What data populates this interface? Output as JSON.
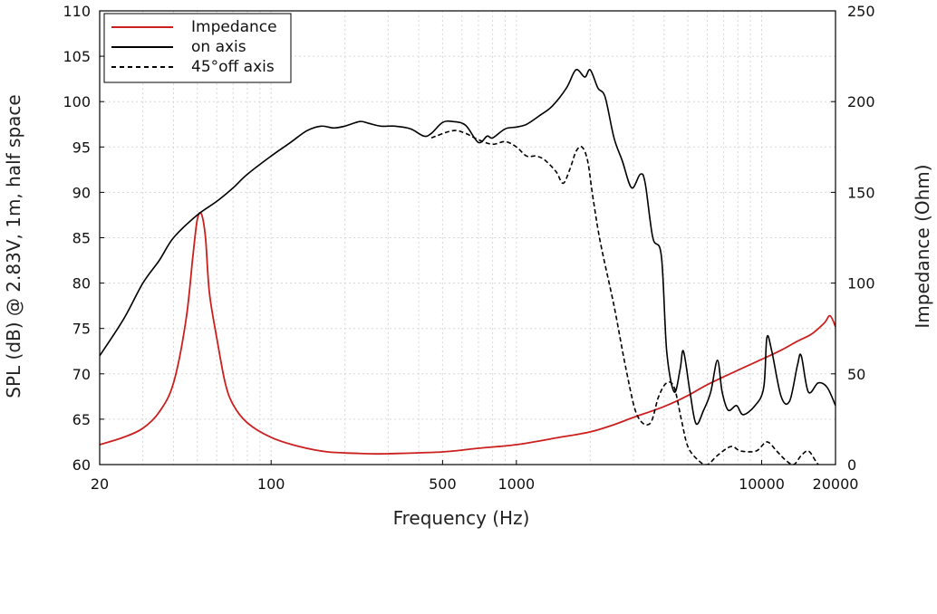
{
  "chart_data": {
    "type": "line",
    "x_scale": "log",
    "xlabel": "Frequency (Hz)",
    "ylabel": "SPL (dB) @ 2.83V, 1m, half space",
    "y2label": "Impedance (Ohm)",
    "xlim": [
      20,
      20000
    ],
    "ylim": [
      60,
      110
    ],
    "y2lim": [
      0,
      250
    ],
    "grid": true,
    "legend_position": "top-left",
    "x_ticks": [
      20,
      100,
      500,
      1000,
      10000,
      20000
    ],
    "x_tick_labels": [
      "20",
      "100",
      "500",
      "1000",
      "10000",
      "20000"
    ],
    "y_ticks": [
      60,
      65,
      70,
      75,
      80,
      85,
      90,
      95,
      100,
      105,
      110
    ],
    "y_tick_labels": [
      "60",
      "65",
      "70",
      "75",
      "80",
      "85",
      "90",
      "95",
      "100",
      "105",
      "110"
    ],
    "y2_ticks": [
      0,
      50,
      100,
      150,
      200,
      250
    ],
    "y2_tick_labels": [
      "0",
      "50",
      "100",
      "150",
      "200",
      "250"
    ],
    "series": [
      {
        "name": "Impedance",
        "axis": "right",
        "color": "#cc1f1f",
        "style": "solid",
        "points": [
          [
            20,
            11
          ],
          [
            25,
            15
          ],
          [
            30,
            20
          ],
          [
            35,
            29
          ],
          [
            40,
            45
          ],
          [
            45,
            80
          ],
          [
            48,
            115
          ],
          [
            50,
            135
          ],
          [
            52,
            138
          ],
          [
            54,
            125
          ],
          [
            56,
            95
          ],
          [
            60,
            70
          ],
          [
            65,
            45
          ],
          [
            70,
            33
          ],
          [
            80,
            23
          ],
          [
            100,
            15
          ],
          [
            130,
            10
          ],
          [
            170,
            7
          ],
          [
            250,
            6
          ],
          [
            300,
            6
          ],
          [
            500,
            7
          ],
          [
            700,
            9
          ],
          [
            1000,
            11
          ],
          [
            1500,
            15
          ],
          [
            2000,
            18
          ],
          [
            2500,
            22
          ],
          [
            3000,
            26
          ],
          [
            4000,
            32
          ],
          [
            5000,
            38
          ],
          [
            6000,
            44
          ],
          [
            8000,
            52
          ],
          [
            10000,
            58
          ],
          [
            12000,
            63
          ],
          [
            14000,
            68
          ],
          [
            16000,
            72
          ],
          [
            18000,
            78
          ],
          [
            19000,
            82
          ],
          [
            20000,
            76
          ]
        ]
      },
      {
        "name": "on axis",
        "axis": "left",
        "color": "#000000",
        "style": "solid",
        "points": [
          [
            20,
            72
          ],
          [
            25,
            76
          ],
          [
            30,
            80
          ],
          [
            35,
            82.5
          ],
          [
            40,
            85
          ],
          [
            50,
            87.5
          ],
          [
            60,
            89
          ],
          [
            70,
            90.5
          ],
          [
            80,
            92
          ],
          [
            100,
            94
          ],
          [
            120,
            95.5
          ],
          [
            140,
            96.8
          ],
          [
            160,
            97.3
          ],
          [
            180,
            97.1
          ],
          [
            200,
            97.3
          ],
          [
            230,
            97.8
          ],
          [
            250,
            97.6
          ],
          [
            280,
            97.3
          ],
          [
            320,
            97.3
          ],
          [
            370,
            97.0
          ],
          [
            420,
            96.2
          ],
          [
            450,
            96.5
          ],
          [
            500,
            97.7
          ],
          [
            550,
            97.8
          ],
          [
            620,
            97.4
          ],
          [
            700,
            95.5
          ],
          [
            760,
            96.2
          ],
          [
            800,
            96.0
          ],
          [
            900,
            97.0
          ],
          [
            1000,
            97.2
          ],
          [
            1100,
            97.5
          ],
          [
            1250,
            98.5
          ],
          [
            1400,
            99.5
          ],
          [
            1600,
            101.5
          ],
          [
            1750,
            103.5
          ],
          [
            1900,
            102.7
          ],
          [
            2000,
            103.5
          ],
          [
            2150,
            101.5
          ],
          [
            2300,
            100.5
          ],
          [
            2500,
            96.0
          ],
          [
            2700,
            93.5
          ],
          [
            2950,
            90.5
          ],
          [
            3200,
            92.0
          ],
          [
            3350,
            91.0
          ],
          [
            3600,
            85.0
          ],
          [
            3900,
            83.0
          ],
          [
            4100,
            72.5
          ],
          [
            4400,
            68.0
          ],
          [
            4650,
            70.5
          ],
          [
            4800,
            72.5
          ],
          [
            5100,
            68.0
          ],
          [
            5400,
            64.5
          ],
          [
            5800,
            66.0
          ],
          [
            6200,
            68.0
          ],
          [
            6600,
            71.5
          ],
          [
            6900,
            68.0
          ],
          [
            7300,
            66.0
          ],
          [
            7900,
            66.5
          ],
          [
            8400,
            65.5
          ],
          [
            9400,
            66.5
          ],
          [
            10200,
            68.5
          ],
          [
            10500,
            74.0
          ],
          [
            11000,
            72.5
          ],
          [
            12000,
            67.5
          ],
          [
            13000,
            67.0
          ],
          [
            14000,
            71.0
          ],
          [
            14500,
            72.0
          ],
          [
            15500,
            68.0
          ],
          [
            17000,
            69.0
          ],
          [
            18500,
            68.5
          ],
          [
            20000,
            66.5
          ]
        ]
      },
      {
        "name": "45°off axis",
        "axis": "left",
        "color": "#000000",
        "style": "dashed",
        "points": [
          [
            450,
            96.0
          ],
          [
            550,
            96.8
          ],
          [
            620,
            96.5
          ],
          [
            700,
            95.8
          ],
          [
            800,
            95.3
          ],
          [
            900,
            95.6
          ],
          [
            1000,
            95.0
          ],
          [
            1100,
            94.0
          ],
          [
            1200,
            94.0
          ],
          [
            1300,
            93.6
          ],
          [
            1450,
            92.3
          ],
          [
            1550,
            91.0
          ],
          [
            1650,
            92.5
          ],
          [
            1750,
            94.5
          ],
          [
            1850,
            95.0
          ],
          [
            1950,
            93.5
          ],
          [
            2050,
            89.5
          ],
          [
            2200,
            84.5
          ],
          [
            2500,
            77.5
          ],
          [
            2800,
            70.5
          ],
          [
            3100,
            65.5
          ],
          [
            3500,
            64.5
          ],
          [
            3800,
            67.5
          ],
          [
            4100,
            69.0
          ],
          [
            4400,
            68.5
          ],
          [
            4700,
            65.0
          ],
          [
            5000,
            62.0
          ],
          [
            5500,
            60.5
          ],
          [
            6000,
            60.0
          ],
          [
            6600,
            61.0
          ],
          [
            7500,
            62.0
          ],
          [
            8200,
            61.5
          ],
          [
            9500,
            61.5
          ],
          [
            10500,
            62.5
          ],
          [
            11500,
            61.5
          ],
          [
            12500,
            60.5
          ],
          [
            13500,
            60.0
          ],
          [
            14500,
            61.0
          ],
          [
            15500,
            61.5
          ],
          [
            16500,
            60.5
          ],
          [
            17000,
            60.0
          ]
        ]
      }
    ]
  }
}
